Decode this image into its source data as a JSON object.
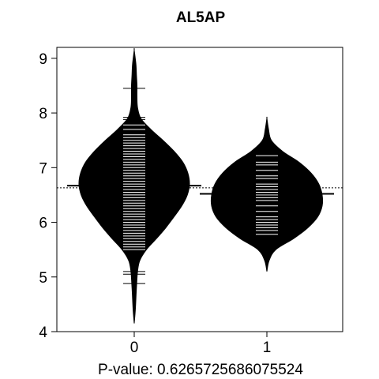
{
  "chart_data": {
    "type": "beanplot",
    "title": "AL5AP",
    "xlabel": "P-value: 0.626572568607552​4",
    "ylabel": "",
    "ylim": [
      4,
      9.2
    ],
    "y_ticks": [
      "4",
      "5",
      "6",
      "7",
      "8",
      "9"
    ],
    "categories": [
      "0",
      "1"
    ],
    "overall_mean": 6.63,
    "beans": [
      {
        "category": "0",
        "mean": 6.67,
        "range": [
          4.15,
          9.15
        ],
        "density": [
          [
            4.15,
            0.0
          ],
          [
            4.4,
            0.02
          ],
          [
            4.8,
            0.04
          ],
          [
            5.1,
            0.06
          ],
          [
            5.3,
            0.1
          ],
          [
            5.5,
            0.22
          ],
          [
            5.7,
            0.4
          ],
          [
            5.9,
            0.57
          ],
          [
            6.1,
            0.72
          ],
          [
            6.3,
            0.86
          ],
          [
            6.5,
            0.96
          ],
          [
            6.7,
            1.0
          ],
          [
            6.9,
            0.97
          ],
          [
            7.1,
            0.88
          ],
          [
            7.3,
            0.72
          ],
          [
            7.5,
            0.52
          ],
          [
            7.7,
            0.3
          ],
          [
            7.9,
            0.12
          ],
          [
            8.1,
            0.06
          ],
          [
            8.3,
            0.05
          ],
          [
            8.5,
            0.05
          ],
          [
            8.7,
            0.04
          ],
          [
            8.9,
            0.03
          ],
          [
            9.15,
            0.0
          ]
        ],
        "points": [
          4.88,
          5.05,
          5.1,
          5.5,
          5.55,
          5.6,
          5.65,
          5.7,
          5.75,
          5.8,
          5.85,
          5.9,
          5.95,
          6.0,
          6.05,
          6.1,
          6.15,
          6.2,
          6.25,
          6.3,
          6.35,
          6.4,
          6.45,
          6.5,
          6.55,
          6.6,
          6.65,
          6.7,
          6.75,
          6.8,
          6.85,
          6.9,
          6.95,
          7.0,
          7.05,
          7.1,
          7.15,
          7.2,
          7.25,
          7.3,
          7.35,
          7.4,
          7.45,
          7.5,
          7.55,
          7.6,
          7.7,
          7.78,
          7.88,
          7.92,
          8.45
        ]
      },
      {
        "category": "1",
        "mean": 6.52,
        "range": [
          5.1,
          7.9
        ],
        "density": [
          [
            5.1,
            0.0
          ],
          [
            5.3,
            0.04
          ],
          [
            5.5,
            0.16
          ],
          [
            5.7,
            0.48
          ],
          [
            5.9,
            0.74
          ],
          [
            6.1,
            0.92
          ],
          [
            6.3,
            1.0
          ],
          [
            6.5,
            1.0
          ],
          [
            6.7,
            0.94
          ],
          [
            6.9,
            0.8
          ],
          [
            7.1,
            0.58
          ],
          [
            7.3,
            0.28
          ],
          [
            7.5,
            0.08
          ],
          [
            7.7,
            0.03
          ],
          [
            7.9,
            0.0
          ]
        ],
        "points": [
          5.78,
          5.85,
          5.9,
          5.95,
          6.0,
          6.05,
          6.1,
          6.2,
          6.3,
          6.4,
          6.45,
          6.5,
          6.55,
          6.6,
          6.65,
          6.7,
          6.8,
          6.85,
          6.95,
          7.05,
          7.1,
          7.22
        ]
      }
    ],
    "grid": false,
    "legend": "none"
  }
}
